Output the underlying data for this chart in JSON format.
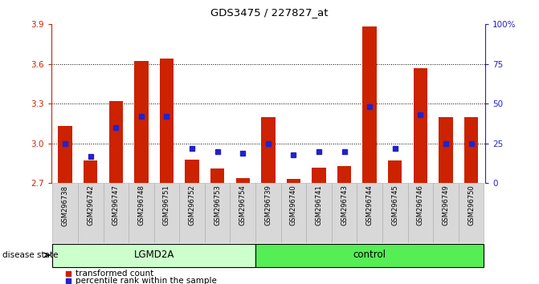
{
  "title": "GDS3475 / 227827_at",
  "samples": [
    "GSM296738",
    "GSM296742",
    "GSM296747",
    "GSM296748",
    "GSM296751",
    "GSM296752",
    "GSM296753",
    "GSM296754",
    "GSM296739",
    "GSM296740",
    "GSM296741",
    "GSM296743",
    "GSM296744",
    "GSM296745",
    "GSM296746",
    "GSM296749",
    "GSM296750"
  ],
  "groups": [
    "LGMD2A",
    "LGMD2A",
    "LGMD2A",
    "LGMD2A",
    "LGMD2A",
    "LGMD2A",
    "LGMD2A",
    "LGMD2A",
    "control",
    "control",
    "control",
    "control",
    "control",
    "control",
    "control",
    "control",
    "control"
  ],
  "red_values": [
    3.13,
    2.87,
    3.32,
    3.62,
    3.64,
    2.88,
    2.81,
    2.74,
    3.2,
    2.73,
    2.82,
    2.83,
    3.88,
    2.87,
    3.57,
    3.2,
    3.2
  ],
  "blue_values_pct": [
    25,
    17,
    35,
    42,
    42,
    22,
    20,
    19,
    25,
    18,
    20,
    20,
    48,
    22,
    43,
    25,
    25
  ],
  "ylim_left": [
    2.7,
    3.9
  ],
  "ylim_right": [
    0,
    100
  ],
  "yticks_left": [
    2.7,
    3.0,
    3.3,
    3.6,
    3.9
  ],
  "yticks_right": [
    0,
    25,
    50,
    75,
    100
  ],
  "ytick_labels_right": [
    "0",
    "25",
    "50",
    "75",
    "100%"
  ],
  "grid_values": [
    3.0,
    3.3,
    3.6
  ],
  "bar_color": "#cc2200",
  "blue_color": "#2222cc",
  "group_color_lgmd": "#ccffcc",
  "group_color_ctrl": "#55ee55",
  "base_value": 2.7,
  "legend_red": "transformed count",
  "legend_blue": "percentile rank within the sample",
  "disease_label": "disease state"
}
